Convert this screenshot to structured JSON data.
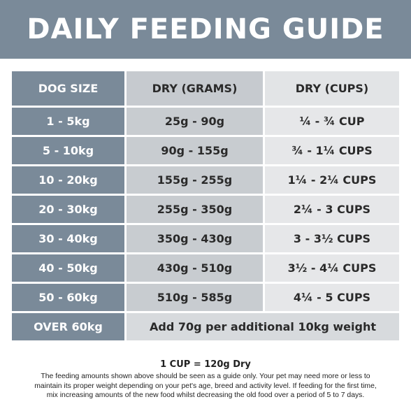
{
  "title": "DAILY FEEDING GUIDE",
  "table": {
    "headers": [
      "DOG SIZE",
      "DRY (GRAMS)",
      "DRY (CUPS)"
    ],
    "rows": [
      {
        "size": "1 - 5kg",
        "grams": "25g - 90g",
        "cups": "¼ - ¾ CUP"
      },
      {
        "size": "5 - 10kg",
        "grams": "90g - 155g",
        "cups": "¾ - 1¼ CUPS"
      },
      {
        "size": "10 - 20kg",
        "grams": "155g - 255g",
        "cups": "1¼ - 2¼ CUPS"
      },
      {
        "size": "20 - 30kg",
        "grams": "255g - 350g",
        "cups": "2¼ - 3 CUPS"
      },
      {
        "size": "30 - 40kg",
        "grams": "350g - 430g",
        "cups": "3 - 3½ CUPS"
      },
      {
        "size": "40 - 50kg",
        "grams": "430g - 510g",
        "cups": "3½ - 4¼ CUPS"
      },
      {
        "size": "50 - 60kg",
        "grams": "510g - 585g",
        "cups": "4¼ - 5 CUPS"
      }
    ],
    "last_row": {
      "size": "OVER 60kg",
      "note": "Add 70g per additional 10kg weight"
    }
  },
  "footer": {
    "cup_conversion": "1 CUP = 120g Dry",
    "lines": [
      "The feeding amounts shown above should be seen as a guide only. Your pet may need more or less to",
      "maintain its proper weight depending on your pet's age, breed and activity level. If feeding for the first time,",
      "mix increasing amounts of the new food whilst decreasing the old food over a period of 5 to 7 days."
    ]
  }
}
